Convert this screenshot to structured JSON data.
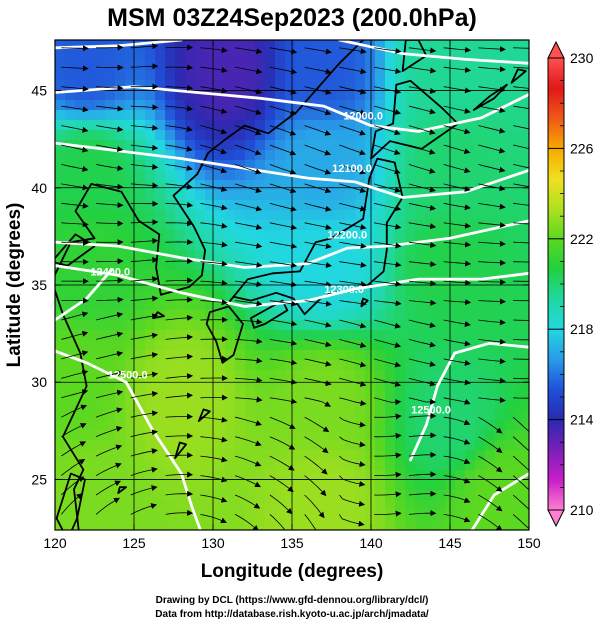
{
  "chart_data": {
    "type": "heatmap",
    "title": "MSM 03Z24Sep2023 (200.0hPa)",
    "xlabel": "Longitude (degrees)",
    "ylabel": "Latitude  (degrees)",
    "xlim": [
      120,
      150
    ],
    "ylim": [
      22.4,
      47.6
    ],
    "xticks": [
      120,
      125,
      130,
      135,
      140,
      145,
      150
    ],
    "yticks": [
      25,
      30,
      35,
      40,
      45
    ],
    "colorbar": {
      "range": [
        210,
        230
      ],
      "ticks": [
        210,
        214,
        218,
        222,
        226,
        230
      ],
      "colors": [
        "#ff7fd0",
        "#c81ec8",
        "#7a1fb8",
        "#2a2ab0",
        "#2050d8",
        "#2a9ae8",
        "#22d8e0",
        "#20d8a0",
        "#22d040",
        "#5cd820",
        "#b0e020",
        "#f0e020",
        "#f8a800",
        "#f05818",
        "#e01818",
        "#ff5050"
      ]
    },
    "temperature_field": [
      {
        "lon": 122,
        "lat": 46,
        "value": 215.5
      },
      {
        "lon": 131,
        "lat": 46,
        "value": 213.5
      },
      {
        "lon": 137,
        "lat": 46,
        "value": 215.5
      },
      {
        "lon": 145,
        "lat": 46,
        "value": 219.5
      },
      {
        "lon": 122,
        "lat": 41,
        "value": 220.5
      },
      {
        "lon": 137,
        "lat": 41,
        "value": 217
      },
      {
        "lon": 145,
        "lat": 41,
        "value": 220
      },
      {
        "lon": 122,
        "lat": 36,
        "value": 221
      },
      {
        "lon": 137,
        "lat": 36,
        "value": 218
      },
      {
        "lon": 145,
        "lat": 36,
        "value": 220.5
      },
      {
        "lon": 121,
        "lat": 30,
        "value": 222
      },
      {
        "lon": 128,
        "lat": 29,
        "value": 223
      },
      {
        "lon": 137,
        "lat": 29,
        "value": 222.5
      },
      {
        "lon": 145,
        "lat": 28,
        "value": 220
      },
      {
        "lon": 122,
        "lat": 24,
        "value": 222.5
      },
      {
        "lon": 137,
        "lat": 24,
        "value": 223
      },
      {
        "lon": 148,
        "lat": 24,
        "value": 222
      }
    ],
    "contour_labels": [
      {
        "text": "12000.0",
        "lon": 139.5,
        "lat": 43.5
      },
      {
        "text": "12100.0",
        "lon": 138.8,
        "lat": 40.8
      },
      {
        "text": "12200.0",
        "lon": 138.5,
        "lat": 37.4
      },
      {
        "text": "12300.0",
        "lon": 138.3,
        "lat": 34.6
      },
      {
        "text": "12400.0",
        "lon": 123.5,
        "lat": 35.5
      },
      {
        "text": "12500.0",
        "lon": 124.6,
        "lat": 30.2
      },
      {
        "text": "12500.0",
        "lon": 143.8,
        "lat": 28.4
      }
    ],
    "credits": [
      "Drawing by DCL (https://www.gfd-dennou.org/library/dcl/)",
      "Data from http://database.rish.kyoto-u.ac.jp/arch/jmadata/"
    ]
  }
}
